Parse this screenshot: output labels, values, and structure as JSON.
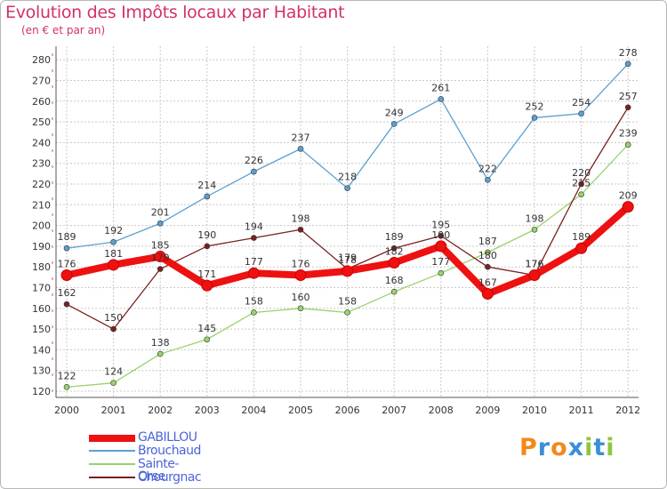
{
  "colors": {
    "title": "#d2316a",
    "grid": "#c8c8c8",
    "axis_text": "#333333",
    "legend_text": "#4a63d8",
    "gabillou": "#ee1111",
    "brouchaud": "#5aa0d2",
    "sainte_orse": "#9ad26a",
    "chourgnac": "#7a2020"
  },
  "logo_text": "Proxiti",
  "chart_data": {
    "type": "line",
    "title": "Evolution des Impôts locaux par Habitant",
    "subtitle": "(en € et par an)",
    "xlabel": "",
    "ylabel": "",
    "categories": [
      "2000",
      "2001",
      "2002",
      "2003",
      "2004",
      "2005",
      "2006",
      "2007",
      "2008",
      "2009",
      "2010",
      "2011",
      "2012"
    ],
    "yticks": [
      "120",
      "130",
      "140",
      "150",
      "160",
      "170",
      "180",
      "190",
      "200",
      "210",
      "220",
      "230",
      "240",
      "250",
      "260",
      "270",
      "280"
    ],
    "ylim": [
      120,
      285
    ],
    "grid": true,
    "legend_position": "bottom-left",
    "series": [
      {
        "name": "GABILLOU",
        "key": "gabillou",
        "values": [
          176,
          181,
          185,
          171,
          177,
          176,
          178,
          182,
          190,
          167,
          176,
          189,
          209
        ],
        "labels": [
          "176",
          "181",
          "185",
          "171",
          "177",
          "176",
          "178",
          "182",
          "190",
          "167",
          "176",
          "189",
          "209"
        ]
      },
      {
        "name": "Brouchaud",
        "key": "brouchaud",
        "values": [
          189,
          192,
          201,
          214,
          226,
          237,
          218,
          249,
          261,
          222,
          252,
          254,
          278
        ],
        "labels": [
          "189",
          "192",
          "201",
          "214",
          "226",
          "237",
          "218",
          "249",
          "261",
          "222",
          "252",
          "254",
          "278"
        ]
      },
      {
        "name": "Sainte-Orse",
        "key": "sainte_orse",
        "values": [
          122,
          124,
          138,
          145,
          158,
          160,
          158,
          168,
          177,
          187,
          198,
          215,
          239
        ],
        "labels": [
          "122",
          "124",
          "138",
          "145",
          "158",
          "160",
          "158",
          "168",
          "177",
          "187",
          "198",
          "215",
          "239"
        ]
      },
      {
        "name": "Chourgnac",
        "key": "chourgnac",
        "values": [
          162,
          150,
          179,
          190,
          194,
          198,
          179,
          189,
          195,
          180,
          176,
          220,
          257
        ],
        "labels": [
          "162",
          "150",
          "179",
          "190",
          "194",
          "198",
          "179",
          "189",
          "195",
          "180",
          "176",
          "220",
          "257"
        ]
      }
    ]
  }
}
